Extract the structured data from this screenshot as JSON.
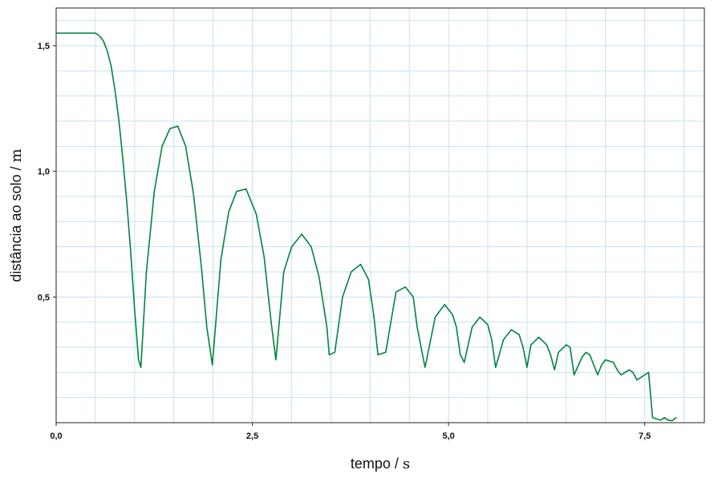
{
  "chart_data": {
    "type": "line",
    "title": "",
    "xlabel": "tempo",
    "xlabel_unit": "s",
    "ylabel": "distância ao solo",
    "ylabel_unit": "m",
    "xlim": [
      0.0,
      8.26
    ],
    "ylim": [
      0.0,
      1.65
    ],
    "grid": true,
    "x_ticks": [
      {
        "value": 0.0,
        "label": "0,0"
      },
      {
        "value": 2.5,
        "label": "2,5"
      },
      {
        "value": 5.0,
        "label": "5,0"
      },
      {
        "value": 7.5,
        "label": "7,5"
      }
    ],
    "y_ticks": [
      {
        "value": 0.5,
        "label": "0,5"
      },
      {
        "value": 1.0,
        "label": "1,0"
      },
      {
        "value": 1.5,
        "label": "1,5"
      }
    ],
    "x_minor_step": 0.5,
    "y_minor_step": 0.1,
    "series": [
      {
        "color": "#00843d",
        "x": [
          0.0,
          0.5,
          0.55,
          0.6,
          0.65,
          0.7,
          0.75,
          0.8,
          0.85,
          0.9,
          0.95,
          1.0,
          1.05,
          1.08,
          1.15,
          1.25,
          1.35,
          1.45,
          1.55,
          1.65,
          1.75,
          1.85,
          1.92,
          1.99,
          2.1,
          2.2,
          2.3,
          2.42,
          2.55,
          2.65,
          2.74,
          2.8,
          2.9,
          3.0,
          3.13,
          3.25,
          3.35,
          3.45,
          3.48,
          3.55,
          3.65,
          3.76,
          3.88,
          3.98,
          4.05,
          4.1,
          4.2,
          4.33,
          4.45,
          4.55,
          4.6,
          4.7,
          4.83,
          4.95,
          5.05,
          5.1,
          5.15,
          5.2,
          5.3,
          5.4,
          5.5,
          5.55,
          5.6,
          5.7,
          5.8,
          5.9,
          5.95,
          6.0,
          6.05,
          6.15,
          6.25,
          6.3,
          6.35,
          6.4,
          6.5,
          6.55,
          6.6,
          6.7,
          6.75,
          6.8,
          6.9,
          6.95,
          7.0,
          7.1,
          7.15,
          7.2,
          7.25,
          7.3,
          7.35,
          7.4,
          7.45,
          7.5,
          7.55,
          7.6,
          7.65,
          7.7,
          7.75,
          7.8,
          7.85,
          7.9
        ],
        "y": [
          1.55,
          1.55,
          1.54,
          1.52,
          1.48,
          1.42,
          1.32,
          1.2,
          1.05,
          0.88,
          0.68,
          0.45,
          0.25,
          0.22,
          0.6,
          0.92,
          1.1,
          1.17,
          1.18,
          1.1,
          0.91,
          0.62,
          0.38,
          0.23,
          0.65,
          0.84,
          0.92,
          0.93,
          0.83,
          0.66,
          0.4,
          0.25,
          0.6,
          0.7,
          0.75,
          0.7,
          0.58,
          0.38,
          0.27,
          0.28,
          0.5,
          0.6,
          0.63,
          0.57,
          0.42,
          0.27,
          0.28,
          0.52,
          0.54,
          0.5,
          0.38,
          0.22,
          0.42,
          0.47,
          0.43,
          0.38,
          0.27,
          0.24,
          0.38,
          0.42,
          0.39,
          0.33,
          0.22,
          0.33,
          0.37,
          0.35,
          0.3,
          0.22,
          0.31,
          0.34,
          0.31,
          0.27,
          0.21,
          0.28,
          0.31,
          0.3,
          0.19,
          0.26,
          0.28,
          0.27,
          0.19,
          0.23,
          0.25,
          0.24,
          0.21,
          0.19,
          0.2,
          0.21,
          0.2,
          0.17,
          0.18,
          0.19,
          0.2,
          0.02,
          0.015,
          0.01,
          0.02,
          0.01,
          0.008,
          0.02
        ]
      }
    ]
  }
}
